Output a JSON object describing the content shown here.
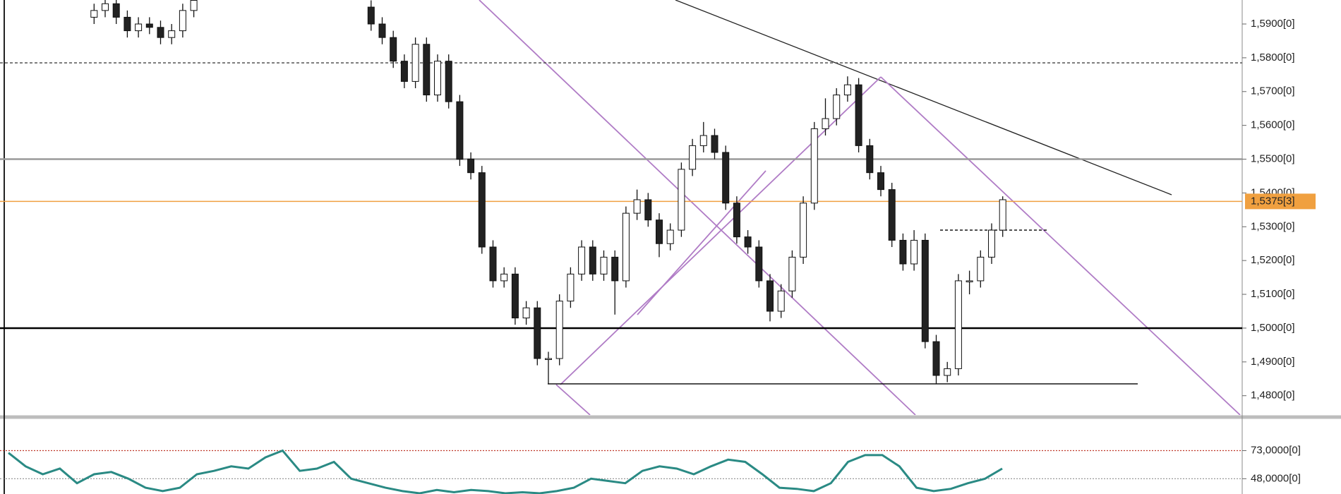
{
  "chart_data": [
    {
      "type": "candlestick",
      "open": [
        1.592,
        1.594,
        1.596,
        1.592,
        1.588,
        1.59,
        1.589,
        1.586,
        1.588,
        1.594,
        null,
        null,
        null,
        null,
        null,
        null,
        null,
        null,
        null,
        null,
        null,
        null,
        null,
        null,
        null,
        1.595,
        1.59,
        1.586,
        1.579,
        1.573,
        1.584,
        1.569,
        1.579,
        1.567,
        1.55,
        1.546,
        1.524,
        1.514,
        1.516,
        1.503,
        1.506,
        1.491,
        1.491,
        1.508,
        1.516,
        1.524,
        1.516,
        1.521,
        1.514,
        1.534,
        1.538,
        1.532,
        1.525,
        1.529,
        1.547,
        1.554,
        1.557,
        1.552,
        1.537,
        1.527,
        1.524,
        1.514,
        1.505,
        1.511,
        1.521,
        1.537,
        1.559,
        1.562,
        1.569,
        1.572,
        1.554,
        1.546,
        1.541,
        1.526,
        1.519,
        1.526,
        1.496,
        1.486,
        1.488,
        1.514,
        1.514,
        1.521,
        1.529
      ],
      "high": [
        1.596,
        1.598,
        1.598,
        1.594,
        1.592,
        1.592,
        1.591,
        1.59,
        1.596,
        1.599,
        null,
        null,
        null,
        null,
        null,
        null,
        null,
        null,
        null,
        null,
        null,
        null,
        null,
        null,
        null,
        1.597,
        1.592,
        1.588,
        1.581,
        1.586,
        1.586,
        1.581,
        1.581,
        1.569,
        1.552,
        1.548,
        1.526,
        1.518,
        1.518,
        1.508,
        1.508,
        1.493,
        1.51,
        1.518,
        1.526,
        1.526,
        1.523,
        1.523,
        1.536,
        1.541,
        1.54,
        1.534,
        1.531,
        1.549,
        1.556,
        1.561,
        1.559,
        1.554,
        1.539,
        1.529,
        1.526,
        1.516,
        1.513,
        1.523,
        1.539,
        1.561,
        1.568,
        1.571,
        1.5745,
        1.574,
        1.556,
        1.548,
        1.543,
        1.528,
        1.529,
        1.528,
        1.498,
        1.49,
        1.516,
        1.517,
        1.523,
        1.531,
        1.539
      ],
      "low": [
        1.59,
        1.592,
        1.59,
        1.586,
        1.586,
        1.587,
        1.584,
        1.584,
        1.586,
        1.592,
        null,
        null,
        null,
        null,
        null,
        null,
        null,
        null,
        null,
        null,
        null,
        null,
        null,
        null,
        null,
        1.588,
        1.584,
        1.577,
        1.571,
        1.571,
        1.567,
        1.567,
        1.565,
        1.548,
        1.544,
        1.522,
        1.512,
        1.512,
        1.501,
        1.501,
        1.489,
        1.4835,
        1.489,
        1.506,
        1.514,
        1.514,
        1.514,
        1.504,
        1.512,
        1.532,
        1.53,
        1.521,
        1.523,
        1.527,
        1.545,
        1.552,
        1.55,
        1.535,
        1.525,
        1.522,
        1.512,
        1.502,
        1.503,
        1.509,
        1.519,
        1.535,
        1.557,
        1.56,
        1.567,
        1.552,
        1.544,
        1.539,
        1.524,
        1.517,
        1.517,
        1.494,
        1.4835,
        1.484,
        1.486,
        1.51,
        1.512,
        1.519,
        1.527
      ],
      "close": [
        1.594,
        1.596,
        1.592,
        1.588,
        1.59,
        1.589,
        1.586,
        1.588,
        1.594,
        1.597,
        null,
        null,
        null,
        null,
        null,
        null,
        null,
        null,
        null,
        null,
        null,
        null,
        null,
        null,
        null,
        1.59,
        1.586,
        1.579,
        1.573,
        1.584,
        1.569,
        1.579,
        1.567,
        1.55,
        1.546,
        1.524,
        1.514,
        1.516,
        1.503,
        1.506,
        1.491,
        1.491,
        1.508,
        1.516,
        1.524,
        1.516,
        1.521,
        1.514,
        1.534,
        1.538,
        1.532,
        1.525,
        1.529,
        1.547,
        1.554,
        1.557,
        1.552,
        1.537,
        1.527,
        1.524,
        1.514,
        1.505,
        1.511,
        1.521,
        1.537,
        1.559,
        1.562,
        1.569,
        1.572,
        1.554,
        1.546,
        1.541,
        1.526,
        1.519,
        1.526,
        1.496,
        1.486,
        1.488,
        1.514,
        1.514,
        1.521,
        1.529,
        1.538
      ],
      "ylim": [
        1.4743,
        1.5971
      ],
      "yticks": [
        {
          "value": 1.48,
          "label": "1,4800[0]"
        },
        {
          "value": 1.49,
          "label": "1,4900[0]"
        },
        {
          "value": 1.5,
          "label": "1,5000[0]"
        },
        {
          "value": 1.51,
          "label": "1,5100[0]"
        },
        {
          "value": 1.52,
          "label": "1,5200[0]"
        },
        {
          "value": 1.53,
          "label": "1,5300[0]"
        },
        {
          "value": 1.54,
          "label": "1,5400[0]"
        },
        {
          "value": 1.55,
          "label": "1,5500[0]"
        },
        {
          "value": 1.56,
          "label": "1,5600[0]"
        },
        {
          "value": 1.57,
          "label": "1,5700[0]"
        },
        {
          "value": 1.58,
          "label": "1,5800[0]"
        },
        {
          "value": 1.59,
          "label": "1,5900[0]"
        }
      ],
      "levels": [
        {
          "value": 1.5785,
          "color": "#444444",
          "style": "dashed"
        },
        {
          "value": 1.55,
          "color": "#9a9a9a"
        },
        {
          "value": 1.5,
          "color": "#000000"
        }
      ],
      "segments": [
        {
          "value": 1.4835,
          "color": "#000000"
        },
        {
          "value": 1.529,
          "color": "#000000",
          "style": "dashed"
        }
      ],
      "last_price": {
        "value": 1.5375,
        "label": "1,5375[3]",
        "color": "#f0a040"
      }
    },
    {
      "type": "line",
      "color": "#2a8a84",
      "values": [
        71,
        59,
        52,
        57,
        44,
        52,
        54,
        48,
        40,
        37,
        40,
        52,
        55,
        59,
        57,
        67,
        73,
        55,
        57,
        63,
        48,
        44,
        40,
        37,
        35,
        38,
        36,
        38,
        37,
        35,
        36,
        35,
        37,
        40,
        48,
        46,
        44,
        55,
        59,
        57,
        52,
        59,
        65,
        63,
        52,
        40,
        39,
        37,
        44,
        63,
        69,
        69,
        59,
        40,
        37,
        39,
        44,
        48,
        57
      ],
      "ylim": [
        34.4,
        97.2
      ],
      "yticks": [
        {
          "value": 73,
          "label": "73,0000[0]"
        },
        {
          "value": 48,
          "label": "48,0000[0]"
        }
      ],
      "levels": [
        {
          "value": 73,
          "color": "#c0392b"
        },
        {
          "value": 48,
          "color": "#9a9a9a"
        }
      ]
    }
  ]
}
